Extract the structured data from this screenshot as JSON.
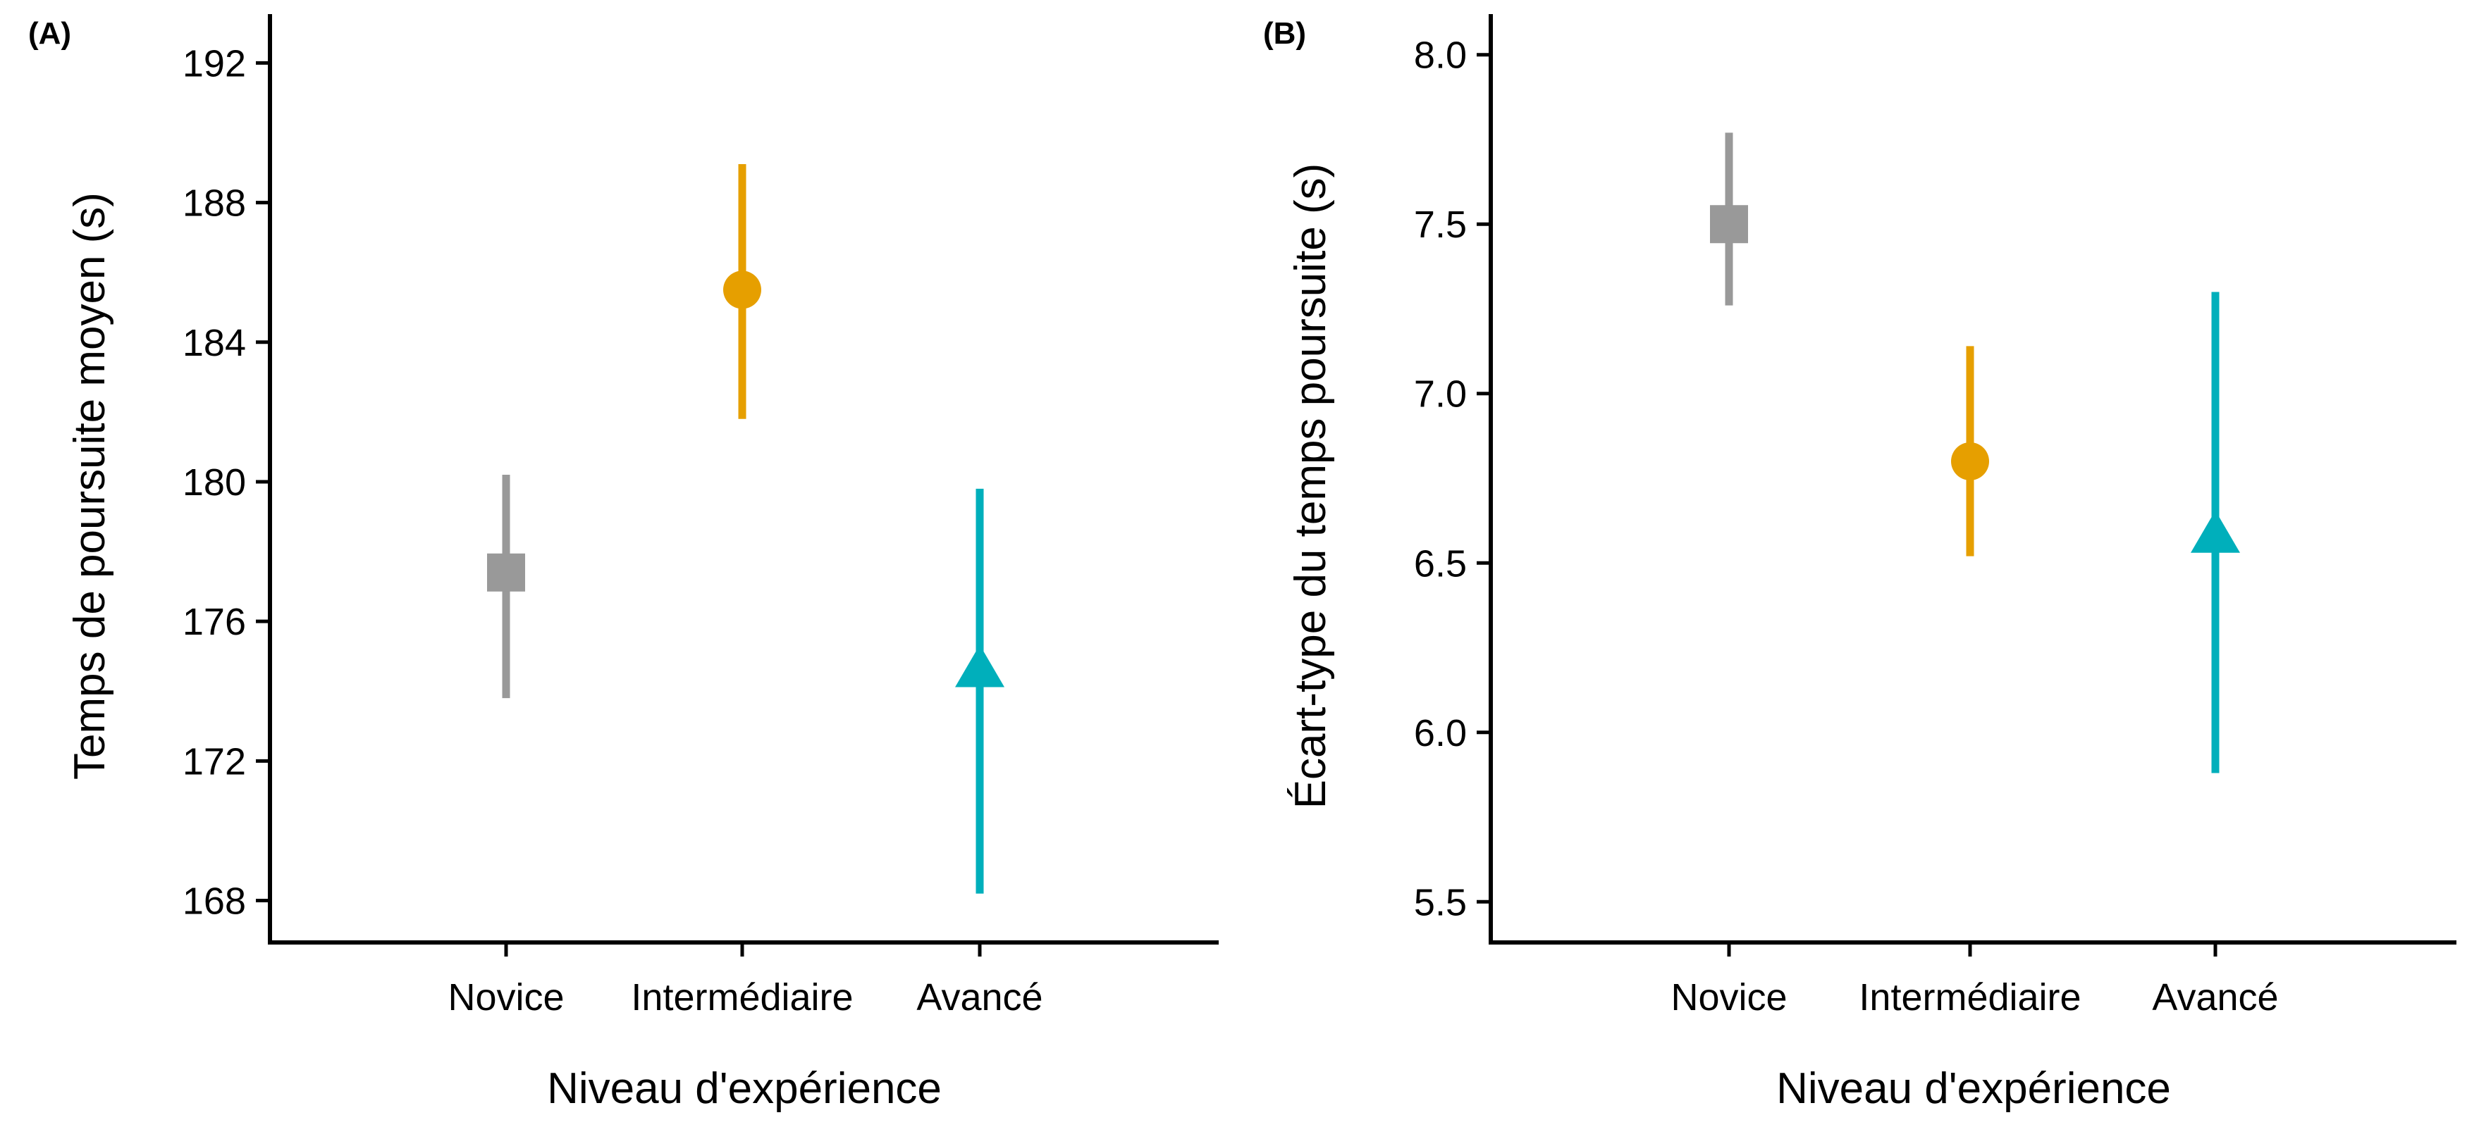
{
  "colors": {
    "Novice": "#999999",
    "Intermédiaire": "#E69F00",
    "Avancé": "#00AFBB"
  },
  "chart_data": [
    {
      "type": "pointrange",
      "panel": "(A)",
      "title": "",
      "xlabel": "Niveau d'expérience",
      "ylabel": "Temps de poursuite moyen (s)",
      "categories": [
        "Novice",
        "Intermédiaire",
        "Avancé"
      ],
      "shapes": [
        "square",
        "circle",
        "triangle"
      ],
      "ylim": [
        166.8,
        193.4
      ],
      "yticks": [
        168,
        172,
        176,
        180,
        184,
        188,
        192
      ],
      "ytick_labels": [
        "168",
        "172",
        "176",
        "180",
        "184",
        "188",
        "192"
      ],
      "values": [
        177.4,
        185.5,
        174.6
      ],
      "lower": [
        173.8,
        181.8,
        168.2
      ],
      "upper": [
        180.2,
        189.1,
        179.8
      ],
      "grid": false
    },
    {
      "type": "pointrange",
      "panel": "(B)",
      "title": "",
      "xlabel": "Niveau d'expérience",
      "ylabel": "Écart-type du temps poursuite (s)",
      "categories": [
        "Novice",
        "Intermédiaire",
        "Avancé"
      ],
      "shapes": [
        "square",
        "circle",
        "triangle"
      ],
      "ylim": [
        5.38,
        8.12
      ],
      "yticks": [
        5.5,
        6.0,
        6.5,
        7.0,
        7.5,
        8.0
      ],
      "ytick_labels": [
        "5.5",
        "6.0",
        "6.5",
        "7.0",
        "7.5",
        "8.0"
      ],
      "values": [
        7.5,
        6.8,
        6.58
      ],
      "lower": [
        7.26,
        6.52,
        5.88
      ],
      "upper": [
        7.77,
        7.14,
        7.3
      ],
      "grid": false
    }
  ]
}
